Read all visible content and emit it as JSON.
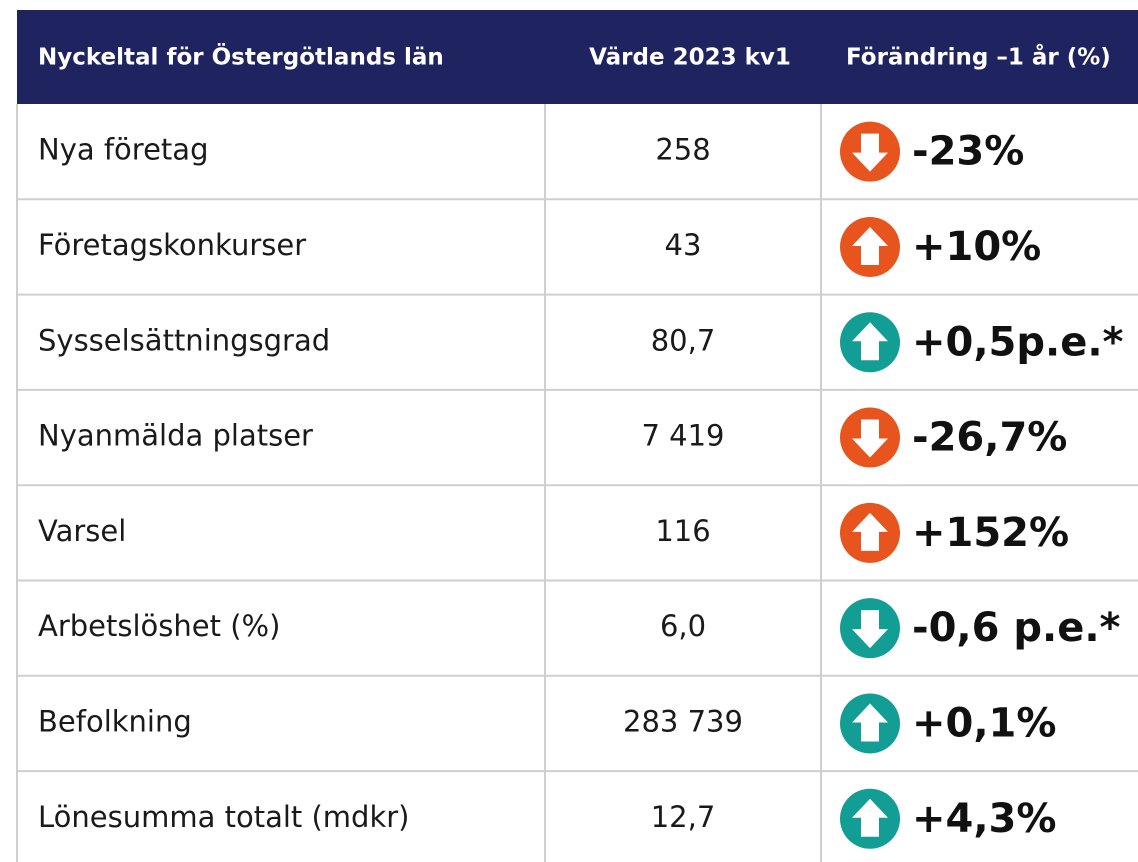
{
  "table": {
    "header": [
      "Nyckeltal för Östergötlands län",
      "Värde 2023 kv1",
      "Förändring –1 år (%)"
    ],
    "rows": [
      {
        "label": "Nya företag",
        "value": "258",
        "change": "-23%",
        "direction": "down",
        "color": "#e8541e"
      },
      {
        "label": "Företagskonkurser",
        "value": "43",
        "change": "+10%",
        "direction": "up",
        "color": "#e8541e"
      },
      {
        "label": "Sysselsättningsgrad",
        "value": "80,7",
        "change": "+0,5p.e.*",
        "direction": "up",
        "color": "#129e94"
      },
      {
        "label": "Nyanmälda platser",
        "value": "7 419",
        "change": "-26,7%",
        "direction": "down",
        "color": "#e8541e"
      },
      {
        "label": "Varsel",
        "value": "116",
        "change": "+152%",
        "direction": "up",
        "color": "#e8541e"
      },
      {
        "label": "Arbetslöshet (%)",
        "value": "6,0",
        "change": "-0,6 p.e.*",
        "direction": "down",
        "color": "#129e94"
      },
      {
        "label": "Befolkning",
        "value": "283 739",
        "change": "+0,1%",
        "direction": "up",
        "color": "#129e94"
      },
      {
        "label": "Lönesumma totalt (mdkr)",
        "value": "12,7",
        "change": "+4,3%",
        "direction": "up",
        "color": "#129e94"
      }
    ]
  }
}
